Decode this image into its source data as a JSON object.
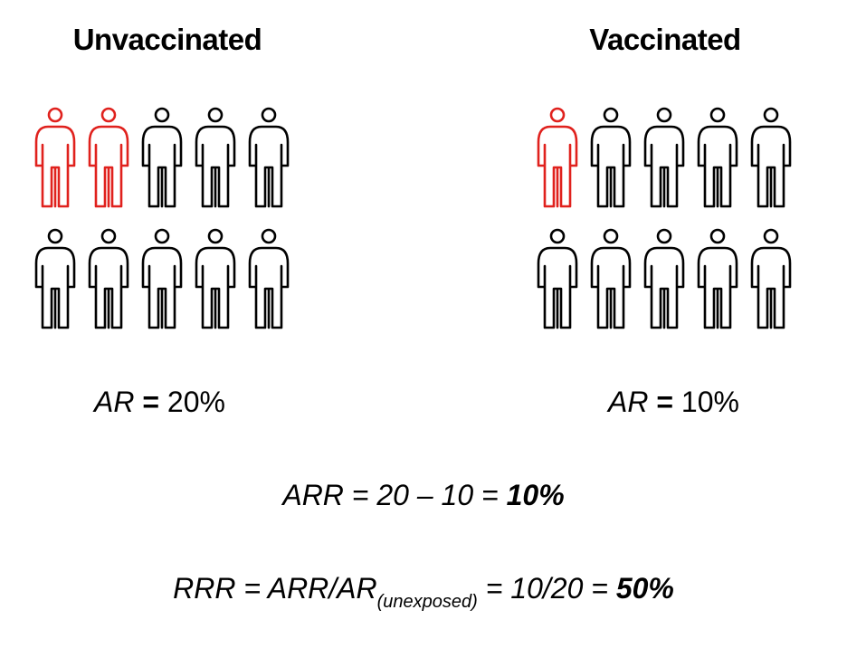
{
  "unvaccinated": {
    "title": "Unvaccinated",
    "people": [
      "red",
      "red",
      "black",
      "black",
      "black",
      "black",
      "black",
      "black",
      "black",
      "black"
    ],
    "ar_label": "AR",
    "ar_eq": " = ",
    "ar_value": "20%"
  },
  "vaccinated": {
    "title": "Vaccinated",
    "people": [
      "red",
      "black",
      "black",
      "black",
      "black",
      "black",
      "black",
      "black",
      "black",
      "black"
    ],
    "ar_label": "AR",
    "ar_eq": " = ",
    "ar_value": "10%"
  },
  "colors": {
    "affected": "#e0211d",
    "unaffected": "#000000"
  },
  "arr": {
    "expression": "ARR = 20 – 10 = ",
    "result": "10%"
  },
  "rrr": {
    "expression": "RRR = ARR/AR",
    "subscript": "(unexposed)",
    "expression2": " = 10/20 = ",
    "result": "50%"
  }
}
